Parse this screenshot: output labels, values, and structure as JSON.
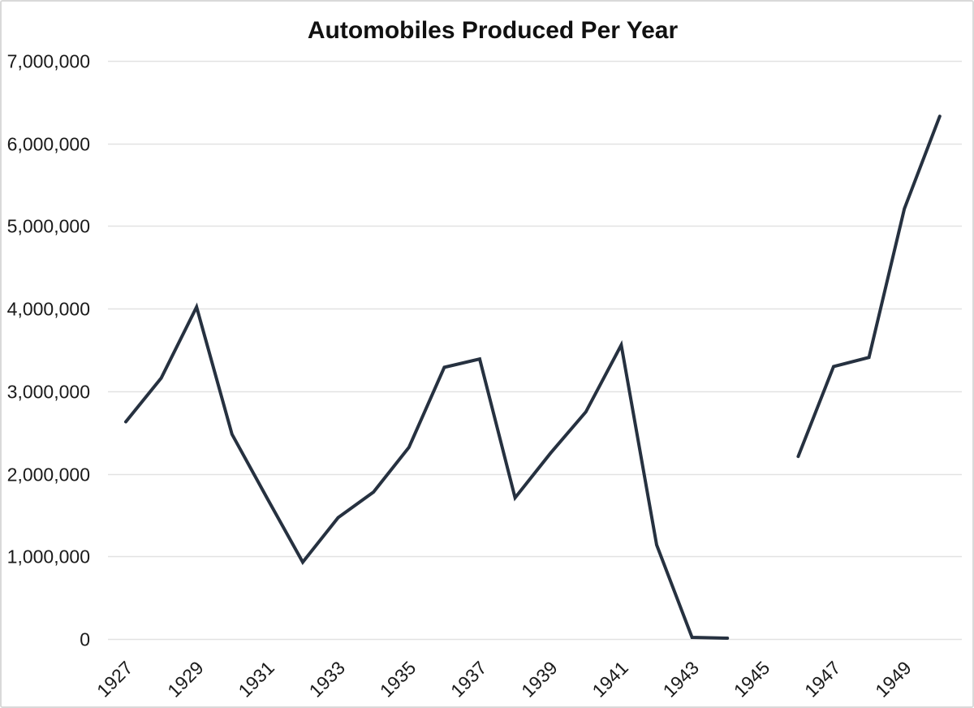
{
  "frame": {
    "background": "#ffffff",
    "border_color": "#d9d9d9"
  },
  "chart_data": {
    "type": "line",
    "title": "Automobiles Produced Per Year",
    "xlabel": "",
    "ylabel": "",
    "legend": "none",
    "grid": "horizontal-only",
    "x": [
      1927,
      1928,
      1929,
      1930,
      1931,
      1932,
      1933,
      1934,
      1935,
      1936,
      1937,
      1938,
      1939,
      1940,
      1941,
      1942,
      1943,
      1944,
      1945,
      1946,
      1947,
      1948,
      1949,
      1950
    ],
    "series": [
      {
        "name": "Automobiles produced",
        "values": [
          2630000,
          3160000,
          4020000,
          2480000,
          1700000,
          930000,
          1470000,
          1780000,
          2320000,
          3290000,
          3390000,
          1710000,
          2250000,
          2750000,
          3560000,
          1140000,
          20000,
          10000,
          null,
          2210000,
          3300000,
          3410000,
          5210000,
          6330000
        ]
      }
    ],
    "gap_years": [
      1945
    ],
    "xlim": [
      1926.5,
      1950.5
    ],
    "ylim": [
      0,
      7000000
    ],
    "x_tick_labels": [
      "1927",
      "1929",
      "1931",
      "1933",
      "1935",
      "1937",
      "1939",
      "1941",
      "1943",
      "1945",
      "1947",
      "1949"
    ],
    "y_ticks": [
      {
        "value": 0,
        "label": "0"
      },
      {
        "value": 1000000,
        "label": "1,000,000"
      },
      {
        "value": 2000000,
        "label": "2,000,000"
      },
      {
        "value": 3000000,
        "label": "3,000,000"
      },
      {
        "value": 4000000,
        "label": "4,000,000"
      },
      {
        "value": 5000000,
        "label": "5,000,000"
      },
      {
        "value": 6000000,
        "label": "6,000,000"
      },
      {
        "value": 7000000,
        "label": "7,000,000"
      }
    ],
    "colors": {
      "line": "#263140",
      "grid": "#e2e2e2",
      "text": "#1a1a1a",
      "title": "#111111"
    }
  }
}
